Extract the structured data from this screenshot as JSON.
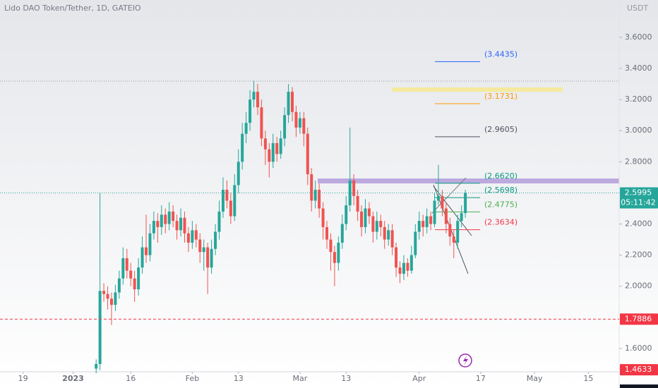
{
  "chart_data": {
    "type": "candlestick",
    "title": "Lido DAO Token/Tether, 1D, GATEIO",
    "currency": "USDT",
    "up_color": "#26a69a",
    "down_color": "#ef5350",
    "xlim": [
      "2022-12-13",
      "2023-05-23"
    ],
    "ylim": [
      1.45,
      3.84
    ],
    "xticks": [
      {
        "value": "2022-12-19",
        "label": "19"
      },
      {
        "value": "2023-01-01",
        "label": "2023"
      },
      {
        "value": "2023-01-16",
        "label": "16"
      },
      {
        "value": "2023-02-01",
        "label": "Feb"
      },
      {
        "value": "2023-02-13",
        "label": "13"
      },
      {
        "value": "2023-03-01",
        "label": "Mar"
      },
      {
        "value": "2023-03-13",
        "label": "13"
      },
      {
        "value": "2023-04-01",
        "label": "Apr"
      },
      {
        "value": "2023-04-17",
        "label": "17"
      },
      {
        "value": "2023-05-01",
        "label": "May"
      },
      {
        "value": "2023-05-15",
        "label": "15"
      }
    ],
    "yticks": [
      {
        "value": 3.6,
        "label": "3.6000"
      },
      {
        "value": 3.4,
        "label": "3.4000"
      },
      {
        "value": 3.2,
        "label": "3.2000"
      },
      {
        "value": 3.0,
        "label": "3.0000"
      },
      {
        "value": 2.8,
        "label": "2.8000"
      },
      {
        "value": 2.4,
        "label": "2.4000"
      },
      {
        "value": 2.2,
        "label": "2.2000"
      },
      {
        "value": 2.0,
        "label": "2.0000"
      },
      {
        "value": 1.6,
        "label": "1.6000"
      }
    ],
    "x": [
      "2023-01-07",
      "2023-01-08",
      "2023-01-09",
      "2023-01-10",
      "2023-01-11",
      "2023-01-12",
      "2023-01-13",
      "2023-01-14",
      "2023-01-15",
      "2023-01-16",
      "2023-01-17",
      "2023-01-18",
      "2023-01-19",
      "2023-01-20",
      "2023-01-21",
      "2023-01-22",
      "2023-01-23",
      "2023-01-24",
      "2023-01-25",
      "2023-01-26",
      "2023-01-27",
      "2023-01-28",
      "2023-01-29",
      "2023-01-30",
      "2023-01-31",
      "2023-02-01",
      "2023-02-02",
      "2023-02-03",
      "2023-02-04",
      "2023-02-05",
      "2023-02-06",
      "2023-02-07",
      "2023-02-08",
      "2023-02-09",
      "2023-02-10",
      "2023-02-11",
      "2023-02-12",
      "2023-02-13",
      "2023-02-14",
      "2023-02-15",
      "2023-02-16",
      "2023-02-17",
      "2023-02-18",
      "2023-02-19",
      "2023-02-20",
      "2023-02-21",
      "2023-02-22",
      "2023-02-23",
      "2023-02-24",
      "2023-02-25",
      "2023-02-26",
      "2023-02-27",
      "2023-02-28",
      "2023-03-01",
      "2023-03-02",
      "2023-03-03",
      "2023-03-04",
      "2023-03-05",
      "2023-03-06",
      "2023-03-07",
      "2023-03-08",
      "2023-03-09",
      "2023-03-10",
      "2023-03-11",
      "2023-03-12",
      "2023-03-13",
      "2023-03-14",
      "2023-03-15",
      "2023-03-16",
      "2023-03-17",
      "2023-03-18",
      "2023-03-19",
      "2023-03-20",
      "2023-03-21",
      "2023-03-22",
      "2023-03-23",
      "2023-03-24",
      "2023-03-25",
      "2023-03-26",
      "2023-03-27",
      "2023-03-28",
      "2023-03-29",
      "2023-03-30",
      "2023-03-31",
      "2023-04-01",
      "2023-04-02",
      "2023-04-03",
      "2023-04-04",
      "2023-04-05",
      "2023-04-06",
      "2023-04-07",
      "2023-04-08",
      "2023-04-09",
      "2023-04-10",
      "2023-04-11",
      "2023-04-12",
      "2023-04-13"
    ],
    "open": [
      1.47,
      1.5,
      1.97,
      1.95,
      1.92,
      1.88,
      1.96,
      2.05,
      2.18,
      2.1,
      2.05,
      1.98,
      2.12,
      2.25,
      2.2,
      2.34,
      2.42,
      2.38,
      2.46,
      2.4,
      2.48,
      2.42,
      2.36,
      2.44,
      2.34,
      2.28,
      2.36,
      2.3,
      2.22,
      2.25,
      2.12,
      2.24,
      2.35,
      2.48,
      2.62,
      2.55,
      2.45,
      2.65,
      2.8,
      2.98,
      3.05,
      3.2,
      3.25,
      3.15,
      2.95,
      2.88,
      2.8,
      2.92,
      2.85,
      2.95,
      3.1,
      3.25,
      3.12,
      3.02,
      3.08,
      2.98,
      2.72,
      2.55,
      2.62,
      2.5,
      2.38,
      2.3,
      2.22,
      2.15,
      2.28,
      2.4,
      2.52,
      2.68,
      2.58,
      2.48,
      2.38,
      2.5,
      2.45,
      2.35,
      2.42,
      2.38,
      2.3,
      2.36,
      2.25,
      2.12,
      2.08,
      2.15,
      2.1,
      2.2,
      2.35,
      2.42,
      2.38,
      2.45,
      2.4,
      2.55,
      2.58,
      2.5,
      2.4,
      2.32,
      2.28,
      2.42,
      2.47
    ],
    "high": [
      1.53,
      2.6,
      2.02,
      2.0,
      1.96,
      2.01,
      2.1,
      2.25,
      2.24,
      2.15,
      2.1,
      2.18,
      2.32,
      2.46,
      2.4,
      2.48,
      2.47,
      2.52,
      2.5,
      2.54,
      2.52,
      2.46,
      2.5,
      2.48,
      2.38,
      2.42,
      2.4,
      2.34,
      2.3,
      2.28,
      2.3,
      2.4,
      2.55,
      2.7,
      2.68,
      2.6,
      2.72,
      2.88,
      3.05,
      3.12,
      3.26,
      3.32,
      3.3,
      3.2,
      3.0,
      2.92,
      2.98,
      2.96,
      3.0,
      3.15,
      3.3,
      3.28,
      3.16,
      3.12,
      3.12,
      3.02,
      2.76,
      2.68,
      2.66,
      2.54,
      2.42,
      2.34,
      2.26,
      2.32,
      2.46,
      2.58,
      3.02,
      2.72,
      2.62,
      2.52,
      2.56,
      2.54,
      2.48,
      2.48,
      2.46,
      2.42,
      2.4,
      2.4,
      2.28,
      2.16,
      2.2,
      2.18,
      2.26,
      2.4,
      2.48,
      2.46,
      2.5,
      2.48,
      2.6,
      2.78,
      2.62,
      2.54,
      2.44,
      2.36,
      2.46,
      2.52,
      2.62
    ],
    "low": [
      1.44,
      1.46,
      1.9,
      1.85,
      1.75,
      1.84,
      1.92,
      2.01,
      2.05,
      2.0,
      1.9,
      1.94,
      2.08,
      2.15,
      2.16,
      2.3,
      2.28,
      2.33,
      2.34,
      2.36,
      2.38,
      2.3,
      2.32,
      2.28,
      2.22,
      2.24,
      2.25,
      2.15,
      2.1,
      1.95,
      2.08,
      2.2,
      2.3,
      2.44,
      2.5,
      2.4,
      2.42,
      2.6,
      2.75,
      2.92,
      3.0,
      3.15,
      3.1,
      2.9,
      2.78,
      2.7,
      2.76,
      2.8,
      2.82,
      2.9,
      3.05,
      3.06,
      2.96,
      2.98,
      2.9,
      2.65,
      2.48,
      2.5,
      2.44,
      2.3,
      2.24,
      2.1,
      2.0,
      2.1,
      2.24,
      2.36,
      2.48,
      2.52,
      2.42,
      2.32,
      2.34,
      2.4,
      2.28,
      2.3,
      2.32,
      2.24,
      2.26,
      2.2,
      2.06,
      2.02,
      2.04,
      2.06,
      2.08,
      2.18,
      2.3,
      2.32,
      2.34,
      2.36,
      2.38,
      2.52,
      2.45,
      2.34,
      2.26,
      2.18,
      2.24,
      2.38,
      2.44
    ],
    "close": [
      1.5,
      1.97,
      1.95,
      1.92,
      1.88,
      1.96,
      2.05,
      2.18,
      2.1,
      2.05,
      1.98,
      2.12,
      2.25,
      2.2,
      2.34,
      2.42,
      2.38,
      2.46,
      2.4,
      2.48,
      2.42,
      2.36,
      2.44,
      2.34,
      2.28,
      2.36,
      2.3,
      2.22,
      2.25,
      2.12,
      2.24,
      2.35,
      2.48,
      2.62,
      2.55,
      2.45,
      2.65,
      2.8,
      2.98,
      3.05,
      3.2,
      3.25,
      3.15,
      2.95,
      2.88,
      2.8,
      2.92,
      2.85,
      2.95,
      3.1,
      3.25,
      3.12,
      3.02,
      3.08,
      2.98,
      2.72,
      2.55,
      2.62,
      2.5,
      2.38,
      2.3,
      2.22,
      2.15,
      2.28,
      2.4,
      2.52,
      2.68,
      2.58,
      2.48,
      2.38,
      2.5,
      2.45,
      2.35,
      2.42,
      2.38,
      2.3,
      2.36,
      2.25,
      2.12,
      2.08,
      2.15,
      2.1,
      2.2,
      2.35,
      2.42,
      2.38,
      2.45,
      2.4,
      2.55,
      2.58,
      2.5,
      2.4,
      2.32,
      2.28,
      2.42,
      2.47,
      2.5995
    ],
    "levels": [
      {
        "value": 3.4435,
        "label": "(3.4435)",
        "color": "#2962ff"
      },
      {
        "value": 3.1731,
        "label": "(3.1731)",
        "color": "#ff9800"
      },
      {
        "value": 2.9605,
        "label": "(2.9605)",
        "color": "#50535e"
      },
      {
        "value": 2.662,
        "label": "(2.6620)",
        "color": "#089981"
      },
      {
        "value": 2.5698,
        "label": "(2.5698)",
        "color": "#089981"
      },
      {
        "value": 2.4775,
        "label": "(2.4775)",
        "color": "#4caf50"
      },
      {
        "value": 2.3634,
        "label": "(2.3634)",
        "color": "#f23645"
      }
    ],
    "price_labels": [
      {
        "value": 2.5995,
        "countdown": "05:11:42",
        "color": "#26a69a",
        "line": "dotted"
      },
      {
        "value": 1.7886,
        "color": "#f23645",
        "line": "dashed"
      },
      {
        "value": 1.4633,
        "color": "#f23645"
      }
    ]
  }
}
